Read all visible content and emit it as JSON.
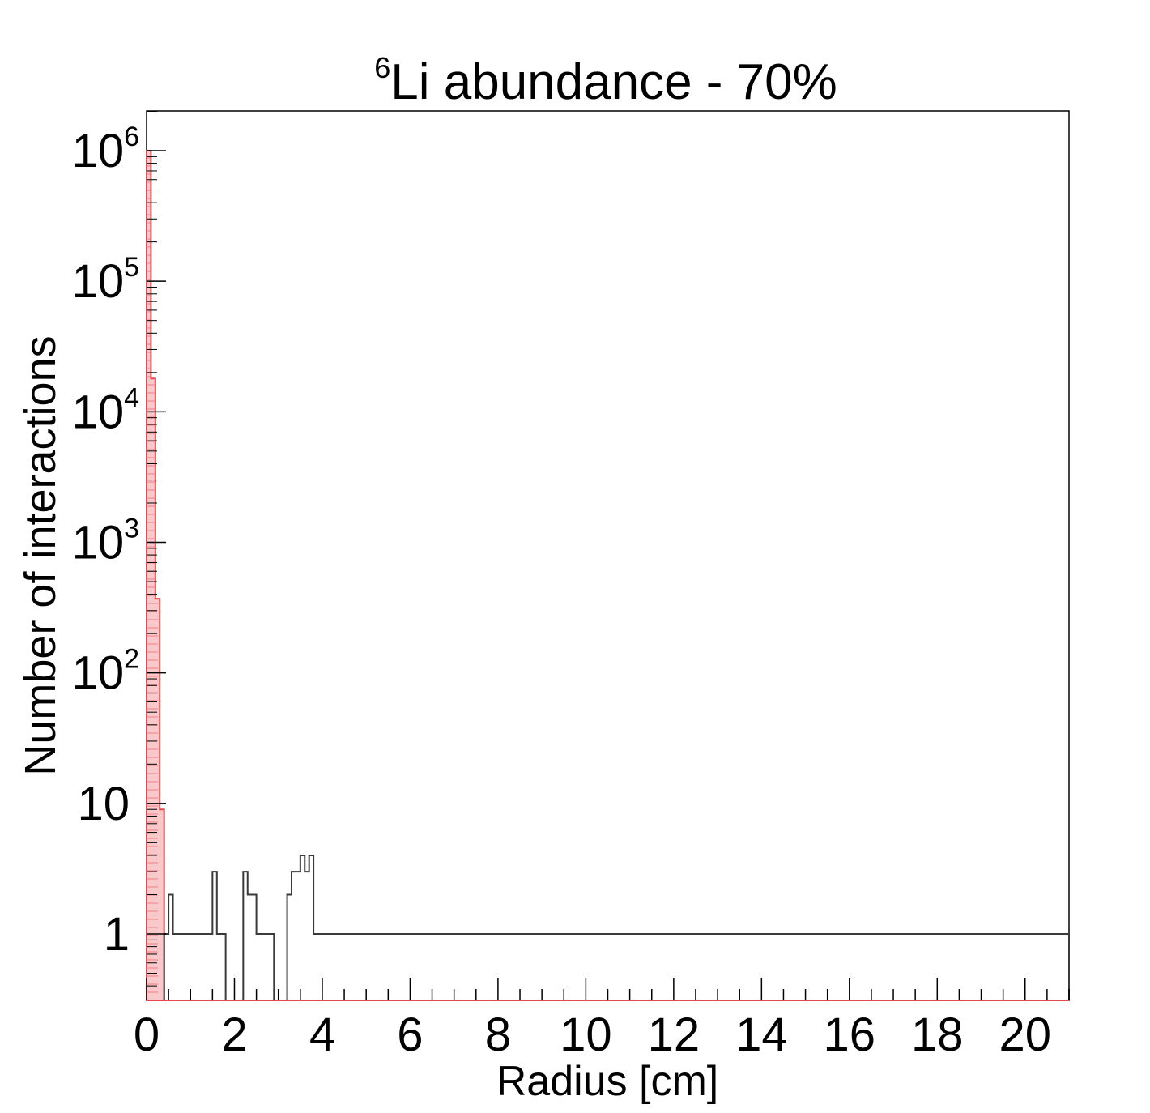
{
  "chart_data": {
    "type": "histogram",
    "title": {
      "superscript": "6",
      "text": "Li abundance - 70%"
    },
    "xlabel": "Radius [cm]",
    "ylabel": "Number of interactions",
    "xlim": [
      0,
      21
    ],
    "ylim": [
      0.3,
      2000000
    ],
    "yscale": "log",
    "grid": false,
    "legend": "none",
    "bin_width_cm": 0.1,
    "x_ticks": [
      {
        "value": 0,
        "label": "0"
      },
      {
        "value": 2,
        "label": "2"
      },
      {
        "value": 4,
        "label": "4"
      },
      {
        "value": 6,
        "label": "6"
      },
      {
        "value": 8,
        "label": "8"
      },
      {
        "value": 10,
        "label": "10"
      },
      {
        "value": 12,
        "label": "12"
      },
      {
        "value": 14,
        "label": "14"
      },
      {
        "value": 16,
        "label": "16"
      },
      {
        "value": 18,
        "label": "18"
      },
      {
        "value": 20,
        "label": "20"
      }
    ],
    "y_ticks": [
      {
        "value": 1,
        "base": "1",
        "exp": ""
      },
      {
        "value": 10,
        "base": "10",
        "exp": ""
      },
      {
        "value": 100,
        "base": "10",
        "exp": "2"
      },
      {
        "value": 1000,
        "base": "10",
        "exp": "3"
      },
      {
        "value": 10000,
        "base": "10",
        "exp": "4"
      },
      {
        "value": 100000,
        "base": "10",
        "exp": "5"
      },
      {
        "value": 1000000,
        "base": "10",
        "exp": "6"
      }
    ],
    "series": [
      {
        "color": "#e8474f",
        "fill": "#f9c8cb",
        "bin_edges": [
          0,
          0.1,
          0.2,
          0.3,
          0.4
        ],
        "counts": [
          1000000,
          18000,
          370,
          9
        ]
      },
      {
        "color": "#3a3a3a",
        "x_start": 0.4,
        "counts": [
          1,
          2,
          1,
          1,
          1,
          1,
          1,
          1,
          1,
          1,
          1,
          3,
          1,
          1,
          0,
          0,
          0,
          0,
          3,
          2,
          2,
          1,
          1,
          1,
          1,
          0,
          0,
          0,
          2,
          3,
          3,
          4,
          3,
          4,
          1,
          1,
          1,
          1,
          1,
          1,
          1,
          1,
          1,
          1,
          1,
          1,
          1,
          1,
          1,
          1,
          1,
          1,
          1,
          1,
          1,
          1,
          1,
          1,
          1,
          1,
          1,
          1,
          1,
          1,
          1,
          1,
          1,
          1,
          1,
          1,
          1,
          1,
          1,
          1,
          1,
          1,
          1,
          1,
          1,
          1,
          1,
          1,
          1,
          1,
          1,
          1,
          1,
          1,
          1,
          1,
          1,
          1,
          1,
          1,
          1,
          1,
          1,
          1,
          1,
          1,
          1,
          1,
          1,
          1,
          1,
          1,
          1,
          1,
          1,
          1,
          1,
          1,
          1,
          1,
          1,
          1,
          1,
          1,
          1,
          1,
          1,
          1,
          1,
          1,
          1,
          1,
          1,
          1,
          1,
          1,
          1,
          1,
          1,
          1,
          1,
          1,
          1,
          1,
          1,
          1,
          1,
          1,
          1,
          1,
          1,
          1,
          1,
          1,
          1,
          1,
          1,
          1,
          1,
          1,
          1,
          1,
          1,
          1,
          1,
          1,
          1,
          1,
          1,
          1,
          1,
          1,
          1,
          1,
          1,
          1,
          1,
          1,
          1,
          1,
          1,
          1,
          1,
          1,
          1,
          1,
          1,
          1,
          1,
          1,
          1,
          1,
          1,
          1,
          1,
          1,
          1,
          1,
          1,
          1,
          1,
          1,
          1,
          1,
          1,
          1,
          1,
          1,
          1,
          1,
          1,
          1
        ]
      }
    ]
  }
}
